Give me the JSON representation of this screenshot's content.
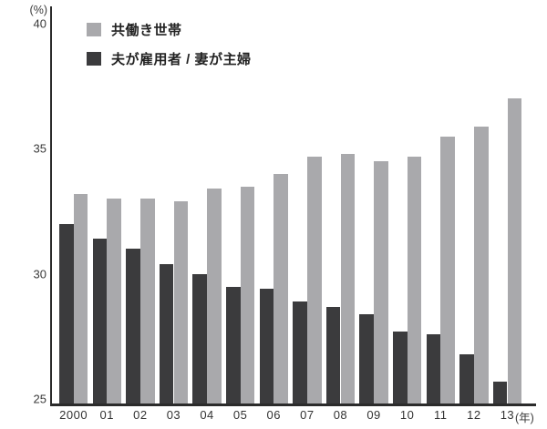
{
  "chart_data": {
    "type": "bar",
    "title": "",
    "categories": [
      "2000",
      "01",
      "02",
      "03",
      "04",
      "05",
      "06",
      "07",
      "08",
      "09",
      "10",
      "11",
      "12",
      "13"
    ],
    "series": [
      {
        "name": "共働き世帯",
        "color": "#a9a9ac",
        "values": [
          33.2,
          33.0,
          33.0,
          32.9,
          33.4,
          33.5,
          34.0,
          34.7,
          34.8,
          34.5,
          34.7,
          35.5,
          35.9,
          37.0
        ]
      },
      {
        "name": "夫が雇用者 / 妻が主婦",
        "color": "#3b3b3d",
        "values": [
          32.0,
          31.4,
          31.0,
          30.4,
          30.0,
          29.5,
          29.4,
          28.9,
          28.7,
          28.4,
          27.7,
          27.6,
          26.8,
          25.7
        ]
      }
    ],
    "bar_order_left_to_right": [
      "夫が雇用者 / 妻が主婦",
      "共働き世帯"
    ],
    "y_unit": "(%)",
    "x_unit": "(年)",
    "ylim": [
      25,
      40
    ],
    "yticks": [
      40,
      35,
      30,
      25
    ],
    "grid": false,
    "legend_position": "top-left",
    "axis_color": "#2b2b2b"
  }
}
